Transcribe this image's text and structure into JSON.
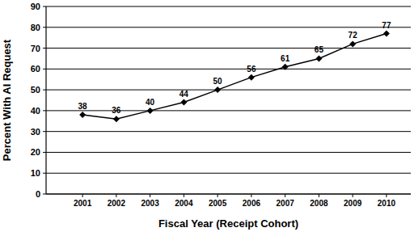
{
  "chart_data": {
    "type": "line",
    "x_label": "Fiscal Year (Receipt Cohort)",
    "y_label": "Percent With AI Request",
    "categories": [
      "2001",
      "2002",
      "2003",
      "2004",
      "2005",
      "2006",
      "2007",
      "2008",
      "2009",
      "2010"
    ],
    "values": [
      38,
      36,
      40,
      44,
      50,
      56,
      61,
      65,
      72,
      77
    ],
    "color": "#000000",
    "marker": "diamond",
    "ylim": [
      0,
      90
    ],
    "yticks": [
      0,
      10,
      20,
      30,
      40,
      50,
      60,
      70,
      80,
      90
    ],
    "grid": true,
    "data_labels": true
  }
}
